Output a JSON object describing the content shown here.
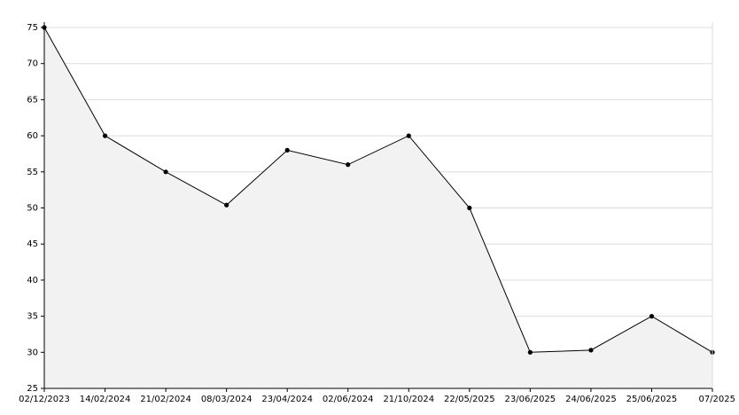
{
  "chart_data": {
    "type": "area",
    "categories": [
      "02/12/2023",
      "14/02/2024",
      "21/02/2024",
      "08/03/2024",
      "23/04/2024",
      "02/06/2024",
      "21/10/2024",
      "22/05/2025",
      "23/06/2025",
      "24/06/2025",
      "25/06/2025",
      "07/2025"
    ],
    "values": [
      75,
      60,
      55,
      50.4,
      58,
      56,
      60,
      50,
      30,
      30.3,
      35,
      30
    ],
    "color": "#000000",
    "fill": "#f2f2f2",
    "ylim": [
      25,
      75
    ],
    "yticks": [
      25,
      30,
      35,
      40,
      45,
      50,
      55,
      60,
      65,
      70,
      75
    ],
    "grid": true
  }
}
